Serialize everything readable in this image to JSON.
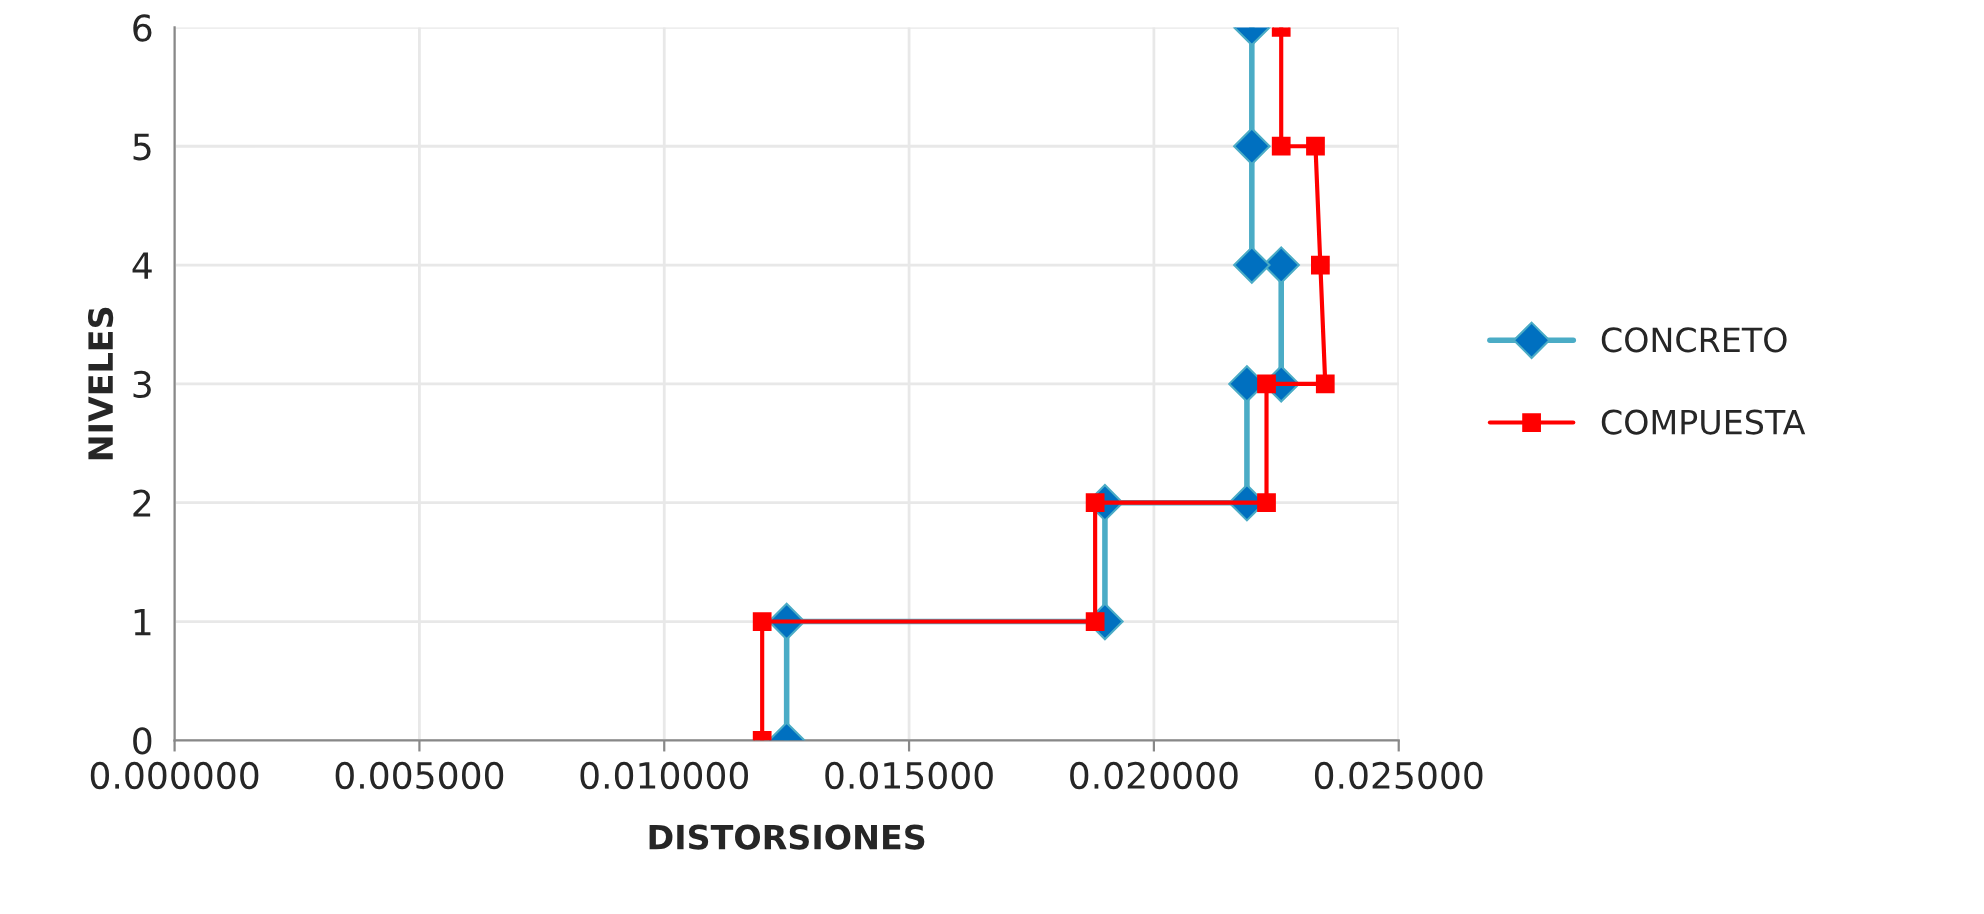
{
  "chart_data": {
    "type": "line",
    "xlabel": "DISTORSIONES",
    "ylabel": "NIVELES",
    "xlim": [
      0,
      0.025
    ],
    "xticks": [
      {
        "value": 0,
        "label": "0.000000"
      },
      {
        "value": 0.005,
        "label": "0.005000"
      },
      {
        "value": 0.01,
        "label": "0.010000"
      },
      {
        "value": 0.015,
        "label": "0.015000"
      },
      {
        "value": 0.02,
        "label": "0.020000"
      },
      {
        "value": 0.025,
        "label": "0.025000"
      }
    ],
    "ylim": [
      0,
      6
    ],
    "yticks": [
      0,
      1,
      2,
      3,
      4,
      5,
      6
    ],
    "grid": true,
    "legend": "right",
    "series": [
      {
        "name": "CONCRETO",
        "color": "#4bacc6",
        "marker": "diamond",
        "x": [
          0.0125,
          0.0125,
          0.019,
          0.019,
          0.0219,
          0.0219,
          0.0226,
          0.0226,
          0.022,
          0.022,
          0.022
        ],
        "values": [
          0,
          1,
          1,
          2,
          2,
          3,
          3,
          4,
          4,
          5,
          6
        ]
      },
      {
        "name": "COMPUESTA",
        "color": "#ff0000",
        "marker": "square",
        "x": [
          0.012,
          0.012,
          0.0188,
          0.0188,
          0.0223,
          0.0223,
          0.0235,
          0.0234,
          0.0233,
          0.0226,
          0.0226
        ],
        "values": [
          0,
          1,
          1,
          2,
          2,
          3,
          3,
          4,
          5,
          5,
          6
        ]
      }
    ]
  }
}
